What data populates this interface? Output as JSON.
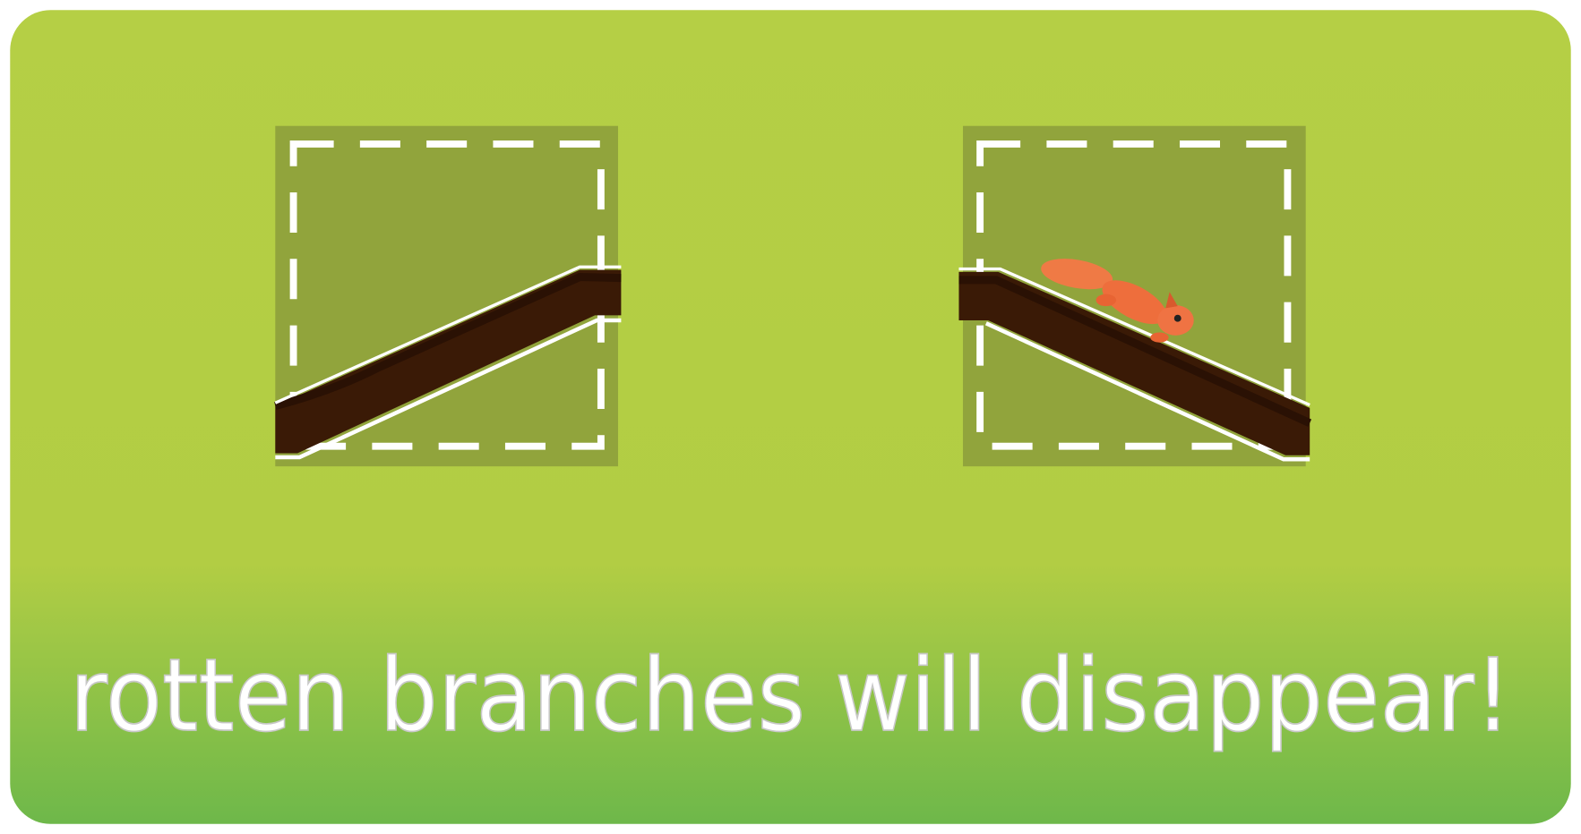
{
  "caption": "rotten branches will disappear!"
}
